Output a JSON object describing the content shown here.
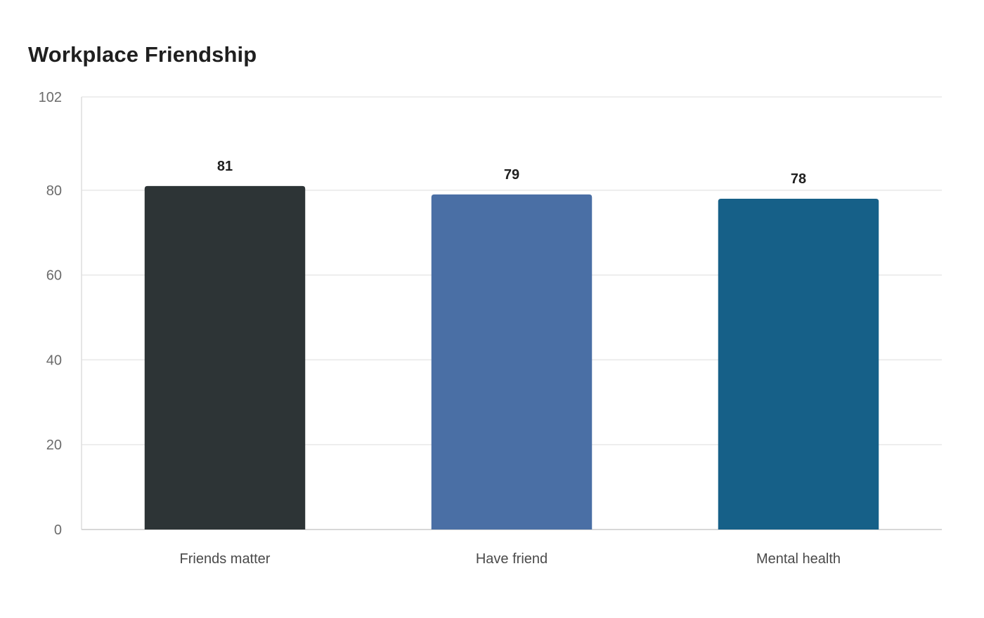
{
  "chart_data": {
    "type": "bar",
    "title": "Workplace Friendship",
    "xlabel": "",
    "ylabel": "",
    "categories": [
      "Friends matter",
      "Have friend",
      "Mental health"
    ],
    "values": [
      81,
      79,
      78
    ],
    "bar_colors": [
      "#2d3436",
      "#4a6fa5",
      "#166088"
    ],
    "ylim": [
      0,
      102
    ],
    "yticks": [
      0,
      20,
      40,
      60,
      80,
      102
    ],
    "grid": true,
    "legend": "none",
    "data_labels": true
  }
}
